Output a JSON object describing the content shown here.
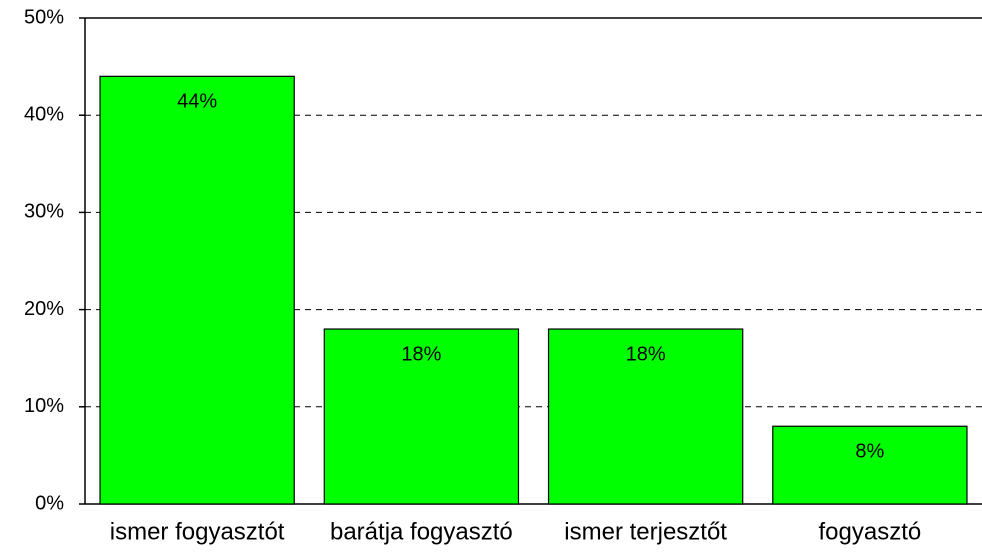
{
  "chart_data": {
    "type": "bar",
    "categories": [
      "ismer fogyasztót",
      "barátja fogyasztó",
      "ismer terjesztőt",
      "fogyasztó"
    ],
    "values": [
      44,
      18,
      18,
      8
    ],
    "value_labels": [
      "44%",
      "18%",
      "18%",
      "8%"
    ],
    "color": "#00ff00",
    "ylim": [
      0,
      50
    ],
    "yticks": [
      {
        "value": 0,
        "label": "0%"
      },
      {
        "value": 10,
        "label": "10%"
      },
      {
        "value": 20,
        "label": "20%"
      },
      {
        "value": 30,
        "label": "30%"
      },
      {
        "value": 40,
        "label": "40%"
      },
      {
        "value": 50,
        "label": "50%"
      }
    ],
    "grid": true
  }
}
